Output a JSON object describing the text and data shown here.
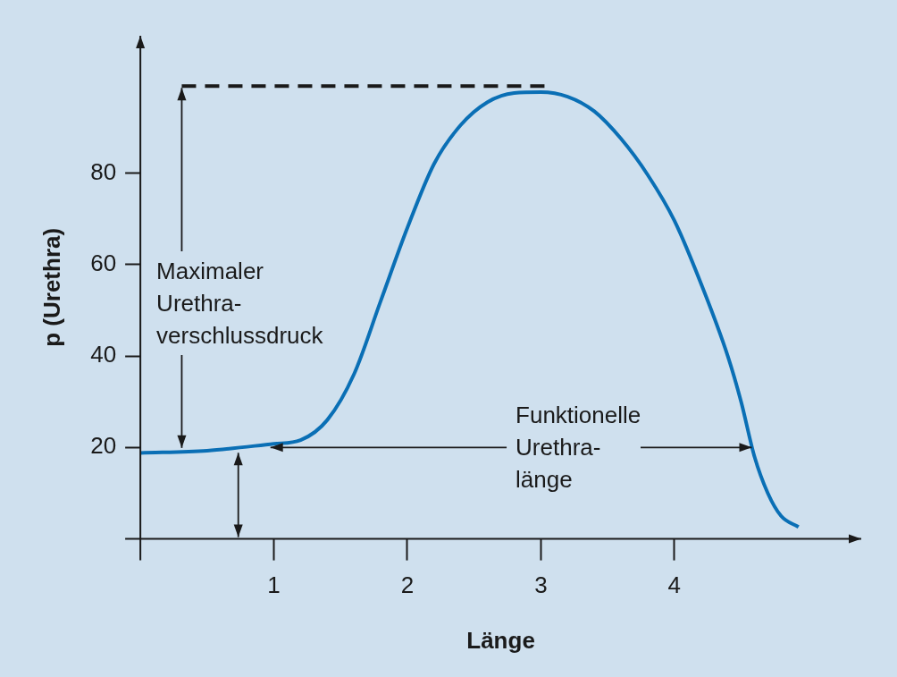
{
  "chart_data": {
    "type": "line",
    "xlabel": "Länge",
    "ylabel": "p (Urethra)",
    "xlim": [
      0,
      5.4
    ],
    "ylim": [
      0,
      110
    ],
    "xticks": [
      1,
      2,
      3,
      4
    ],
    "yticks": [
      20,
      40,
      60,
      80
    ],
    "grid": false,
    "legend": false,
    "marker": "none",
    "series": [
      {
        "color": "#0a6fb5",
        "x": [
          0,
          0.5,
          1,
          1.2,
          1.4,
          1.6,
          1.8,
          2.0,
          2.2,
          2.4,
          2.6,
          2.8,
          3.0,
          3.2,
          3.4,
          3.6,
          3.8,
          4.0,
          4.2,
          4.4,
          4.5,
          4.6,
          4.7,
          4.8,
          4.93
        ],
        "values": [
          18.8,
          19.3,
          20.8,
          21.6,
          26,
          36,
          52,
          68,
          82,
          90.5,
          95.5,
          97.5,
          97.7,
          96.7,
          93.5,
          87.5,
          79.6,
          69.6,
          55.8,
          40,
          30,
          18,
          10,
          5,
          2.6
        ]
      }
    ],
    "ref_lines": [
      {
        "axis": "y",
        "value": 99,
        "color": "#1a1a1a",
        "line_style": "dashed"
      }
    ],
    "annotations": [
      {
        "text": "Maximaler\nUrethra-\nverschlussdruck",
        "x": 0.31,
        "y": 99
      },
      {
        "text": "Funktionelle\nUrethra-\nlänge",
        "x": 4.58,
        "y": 20
      }
    ]
  }
}
